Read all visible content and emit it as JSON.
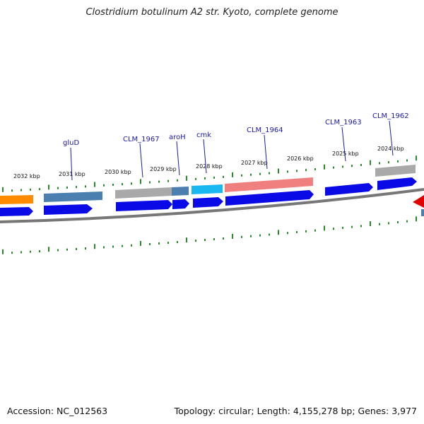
{
  "title": "Clostridium botulinum A2 str. Kyoto, complete genome",
  "footer": {
    "accession": "Accession: NC_012563",
    "summary": "Topology: circular; Length: 4,155,278 bp; Genes: 3,977"
  },
  "kbp_labels": [
    "2032 kbp",
    "2031 kbp",
    "2030 kbp",
    "2029 kbp",
    "2028 kbp",
    "2027 kbp",
    "2026 kbp",
    "2025 kbp",
    "2024 kbp"
  ],
  "gene_labels": [
    "gluD",
    "CLM_1967",
    "aroH",
    "cmk",
    "CLM_1964",
    "CLM_1963",
    "CLM_1962"
  ],
  "colors": {
    "cds": "#0a0ae6",
    "tick": "#2a8a2a",
    "backbone": "#777777",
    "label": "#1a1aa8",
    "orange": "#ff8c00",
    "steelblue": "#4a7fb0",
    "grey": "#a9a9a9",
    "cyan": "#1ab8f0",
    "salmon": "#f08080",
    "red": "#e00000"
  }
}
